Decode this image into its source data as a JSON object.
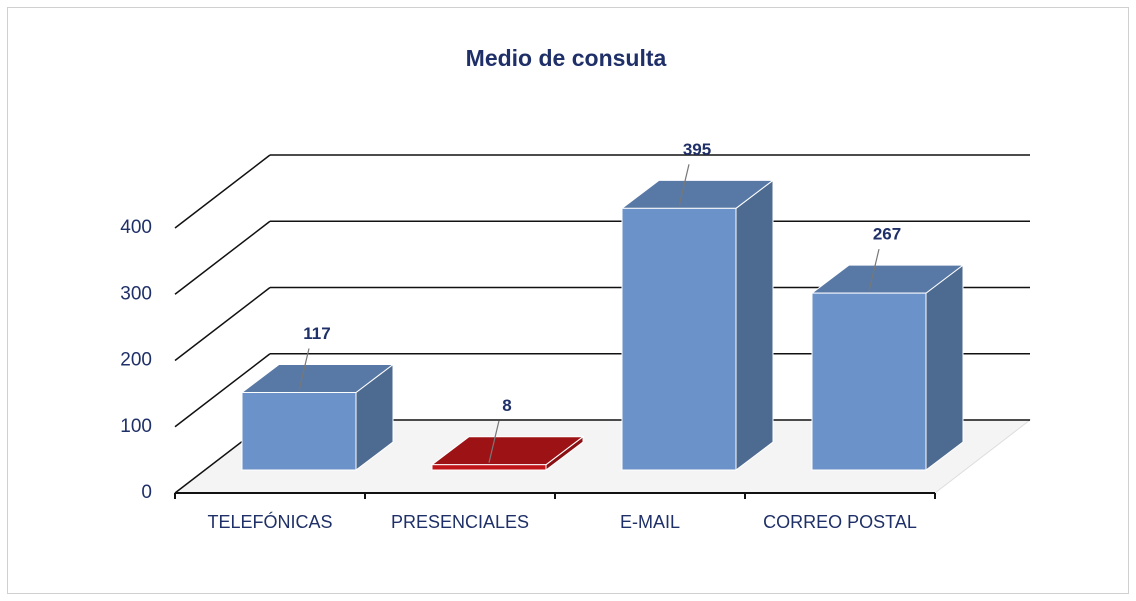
{
  "chart_data": {
    "type": "bar3d",
    "title": "Medio de consulta",
    "categories": [
      "TELEFÓNICAS",
      "PRESENCIALES",
      "E-MAIL",
      "CORREO POSTAL"
    ],
    "values": [
      117,
      8,
      395,
      267
    ],
    "colors": [
      "#6b93c9",
      "#c0161a",
      "#6b93c9",
      "#6b93c9"
    ],
    "ylim": [
      0,
      400
    ],
    "yticks": [
      0,
      100,
      200,
      300,
      400
    ],
    "grid": true
  }
}
